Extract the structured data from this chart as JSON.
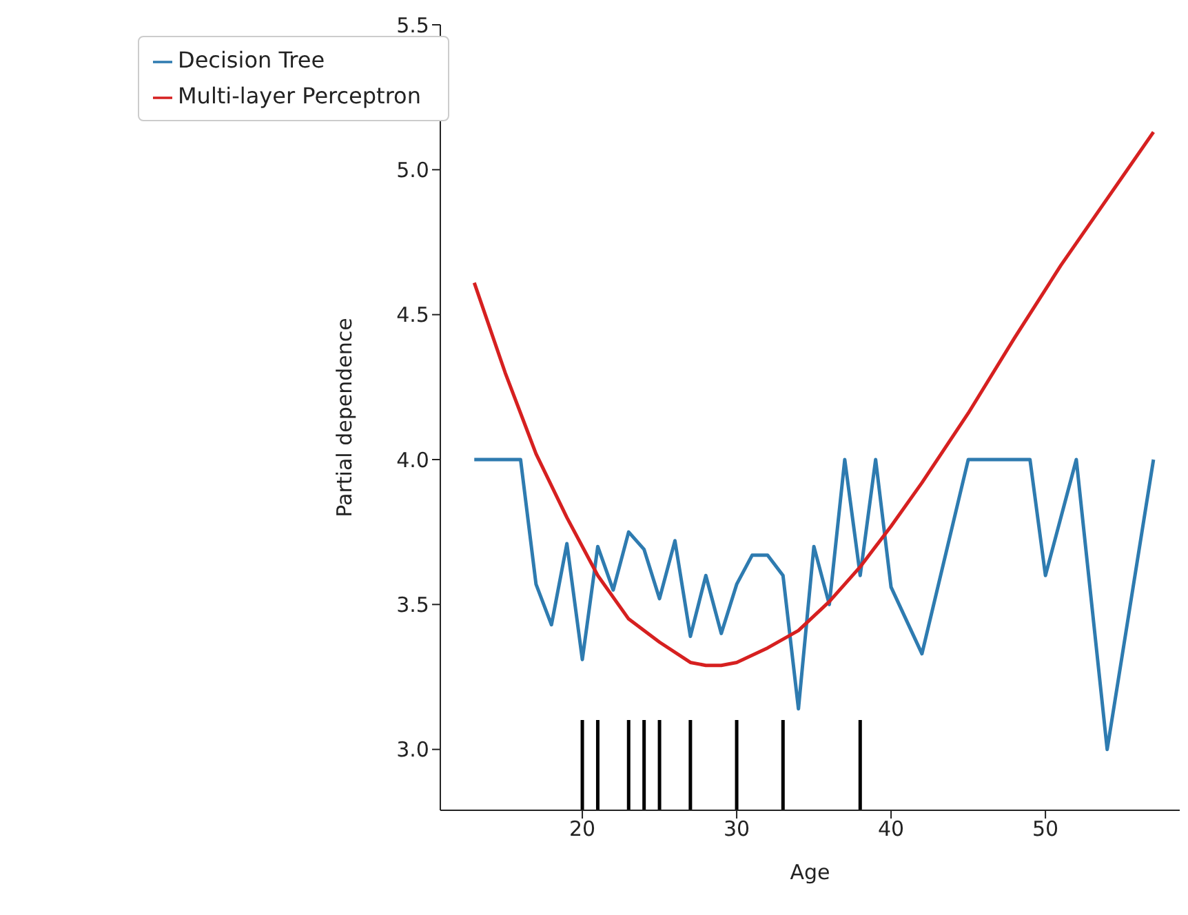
{
  "chart_data": {
    "type": "line",
    "xlabel": "Age",
    "ylabel": "Partial dependence",
    "xlim": [
      10.8,
      58.7
    ],
    "ylim": [
      2.79,
      5.5
    ],
    "xticks": [
      20,
      30,
      40,
      50
    ],
    "yticks": [
      {
        "value": 3,
        "label": "3.0"
      },
      {
        "value": 3.5,
        "label": "3.5"
      },
      {
        "value": 4,
        "label": "4.0"
      },
      {
        "value": 4.5,
        "label": "4.5"
      },
      {
        "value": 5,
        "label": "5.0"
      },
      {
        "value": 5.5,
        "label": "5.5"
      }
    ],
    "legend": "top left",
    "grid": false,
    "marker": "none",
    "line_style": "solid",
    "series": [
      {
        "name": "Decision Tree",
        "color": "#2e7bb0",
        "x": [
          13,
          16,
          17,
          18,
          19,
          20,
          21,
          22,
          23,
          24,
          25,
          26,
          27,
          28,
          29,
          30,
          31,
          32,
          33,
          34,
          35,
          36,
          37,
          38,
          39,
          40,
          42,
          45,
          49,
          50,
          52,
          54,
          57
        ],
        "values": [
          4.0,
          4.0,
          3.57,
          3.43,
          3.71,
          3.31,
          3.7,
          3.55,
          3.75,
          3.69,
          3.52,
          3.72,
          3.39,
          3.6,
          3.4,
          3.57,
          3.67,
          3.67,
          3.6,
          3.14,
          3.7,
          3.5,
          4.0,
          3.6,
          4.0,
          3.56,
          3.33,
          4.0,
          4.0,
          3.6,
          4.0,
          3.0,
          4.0
        ]
      },
      {
        "name": "Multi-layer Perceptron",
        "color": "#d62020",
        "x": [
          13,
          15,
          17,
          19,
          21,
          23,
          25,
          27,
          28,
          29,
          30,
          32,
          34,
          36,
          38,
          40,
          42,
          45,
          48,
          51,
          54,
          57
        ],
        "values": [
          4.61,
          4.3,
          4.02,
          3.8,
          3.6,
          3.45,
          3.37,
          3.3,
          3.29,
          3.29,
          3.3,
          3.35,
          3.41,
          3.51,
          3.63,
          3.77,
          3.92,
          4.16,
          4.42,
          4.67,
          4.9,
          5.13
        ]
      }
    ],
    "ref_lines": [
      {
        "axis": "x",
        "value": 20,
        "color": "#000000"
      },
      {
        "axis": "x",
        "value": 21,
        "color": "#000000"
      },
      {
        "axis": "x",
        "value": 23,
        "color": "#000000"
      },
      {
        "axis": "x",
        "value": 24,
        "color": "#000000"
      },
      {
        "axis": "x",
        "value": 25,
        "color": "#000000"
      },
      {
        "axis": "x",
        "value": 27,
        "color": "#000000"
      },
      {
        "axis": "x",
        "value": 30,
        "color": "#000000"
      },
      {
        "axis": "x",
        "value": 33,
        "color": "#000000"
      },
      {
        "axis": "x",
        "value": 38,
        "color": "#000000"
      }
    ]
  }
}
